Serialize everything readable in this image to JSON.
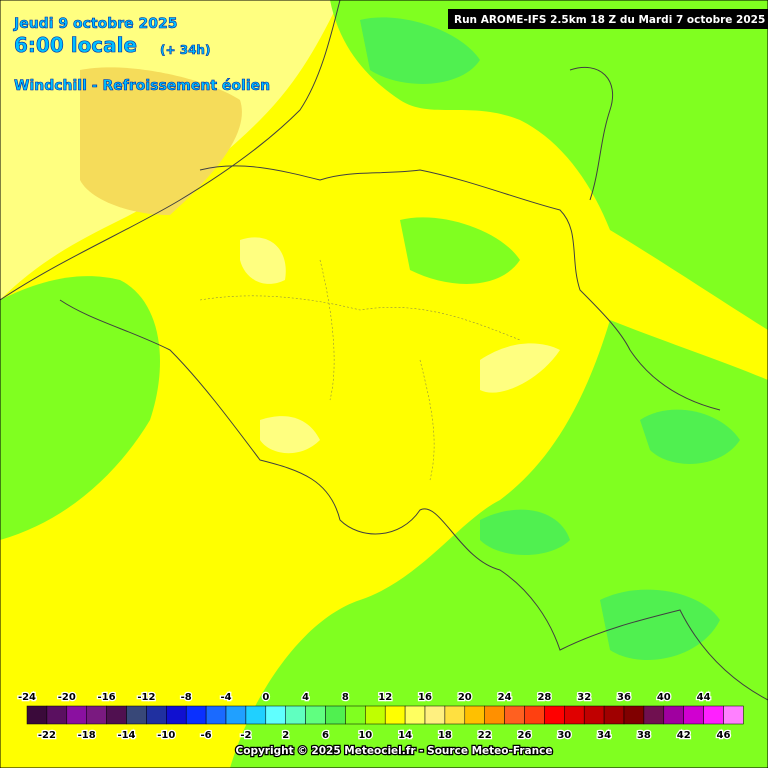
{
  "header": {
    "date": "Jeudi 9 octobre 2025",
    "time": "6:00 locale",
    "lead": "(+ 34h)",
    "parameter": "Windchill - Refroissement éolien",
    "run": "Run AROME-IFS 2.5km 18 Z du Mardi 7 octobre 2025"
  },
  "legend": {
    "boundaries": [
      -24,
      -22,
      -20,
      -18,
      -16,
      -14,
      -12,
      -10,
      -8,
      -6,
      -4,
      -2,
      0,
      2,
      4,
      6,
      8,
      10,
      12,
      14,
      16,
      18,
      20,
      22,
      24,
      26,
      28,
      30,
      32,
      34,
      36,
      38,
      40,
      42,
      44,
      46
    ],
    "colors": [
      "#3a0a3a",
      "#5a1060",
      "#8a10a0",
      "#7a1a80",
      "#501050",
      "#384878",
      "#2030a0",
      "#1010d0",
      "#0a30ff",
      "#1a6aff",
      "#20a0ff",
      "#20d0ff",
      "#60ffff",
      "#60ffc0",
      "#60ff80",
      "#50f050",
      "#80ff20",
      "#c0ff00",
      "#ffff00",
      "#ffff60",
      "#fff080",
      "#ffe040",
      "#ffc000",
      "#ff9000",
      "#ff6020",
      "#ff4010",
      "#ff0000",
      "#e00000",
      "#c00000",
      "#a00000",
      "#800000",
      "#701050",
      "#a000a0",
      "#d000d0",
      "#ff20ff",
      "#ff80ff"
    ]
  },
  "footer": {
    "copyright": "Copyright © 2025 Meteociel.fr - Source Meteo-France"
  }
}
